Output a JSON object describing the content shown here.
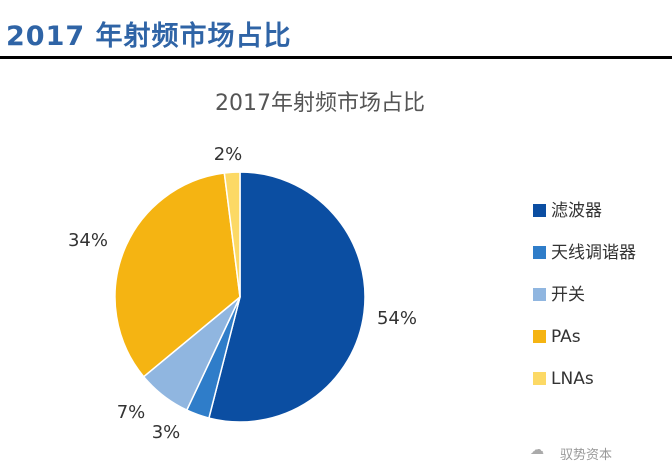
{
  "header": {
    "title": "2017 年射频市场占比"
  },
  "watermark": "驭势资本",
  "chart_data": {
    "type": "pie",
    "title": "2017年射频市场占比",
    "categories": [
      "滤波器",
      "天线调谐器",
      "开关",
      "PAs",
      "LNAs"
    ],
    "values": [
      54,
      3,
      7,
      34,
      2
    ],
    "labels": [
      "54%",
      "3%",
      "7%",
      "34%",
      "2%"
    ],
    "colors": [
      "#0b4ea2",
      "#2f7dc9",
      "#90b6e0",
      "#f5b412",
      "#fcd965"
    ],
    "start": "12 o'clock, clockwise",
    "legend_position": "right"
  }
}
